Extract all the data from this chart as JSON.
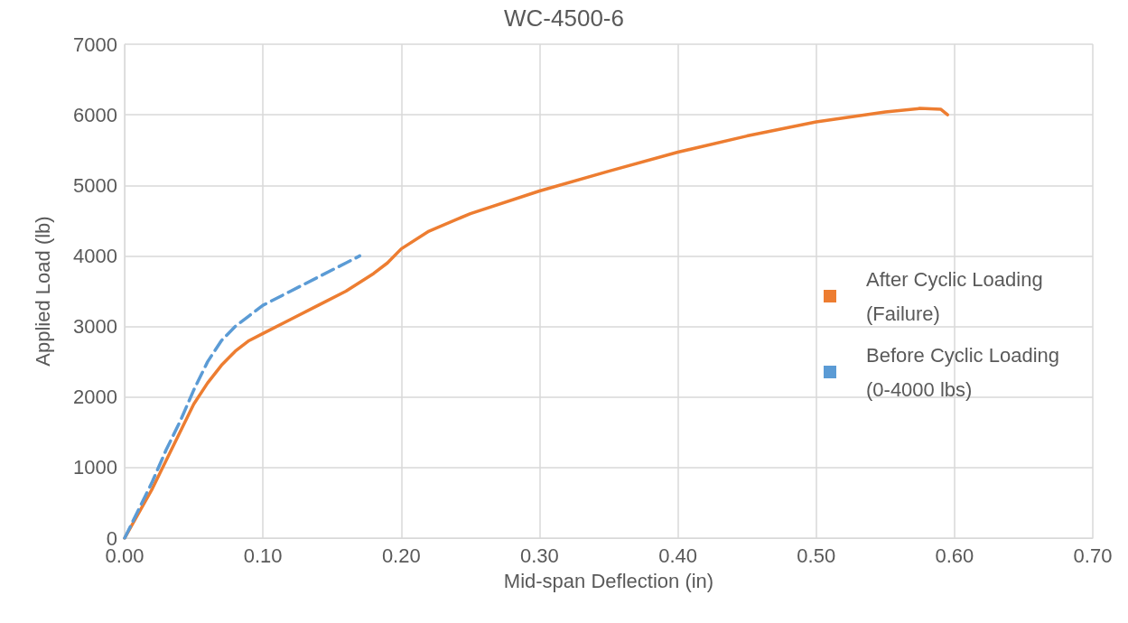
{
  "chart_data": {
    "type": "line",
    "title": "WC-4500-6",
    "xlabel": "Mid-span Deflection (in)",
    "ylabel": "Applied Load (lb)",
    "xlim": [
      0,
      0.7
    ],
    "xticks": [
      {
        "value": 0,
        "label": "0.00"
      },
      {
        "value": 0.1,
        "label": "0.10"
      },
      {
        "value": 0.2,
        "label": "0.20"
      },
      {
        "value": 0.3,
        "label": "0.30"
      },
      {
        "value": 0.4,
        "label": "0.40"
      },
      {
        "value": 0.5,
        "label": "0.50"
      },
      {
        "value": 0.6,
        "label": "0.60"
      },
      {
        "value": 0.7,
        "label": "0.70"
      }
    ],
    "ylim": [
      0,
      7000
    ],
    "yticks": [
      0,
      1000,
      2000,
      3000,
      4000,
      5000,
      6000,
      7000
    ],
    "grid": true,
    "legend": "right",
    "marker": "none",
    "series": [
      {
        "name": "After Cyclic Loading (Failure)",
        "color": "#ed7d31",
        "line_style": "solid",
        "x": [
          0,
          0.01,
          0.02,
          0.03,
          0.04,
          0.05,
          0.06,
          0.07,
          0.08,
          0.09,
          0.1,
          0.12,
          0.14,
          0.16,
          0.18,
          0.19,
          0.2,
          0.22,
          0.25,
          0.3,
          0.35,
          0.4,
          0.45,
          0.5,
          0.55,
          0.575,
          0.59,
          0.595
        ],
        "values": [
          0,
          350,
          700,
          1100,
          1500,
          1900,
          2200,
          2450,
          2650,
          2800,
          2900,
          3100,
          3300,
          3500,
          3750,
          3900,
          4100,
          4350,
          4600,
          4920,
          5200,
          5470,
          5700,
          5900,
          6040,
          6090,
          6080,
          6000
        ]
      },
      {
        "name": "Before Cyclic Loading (0-4000 lbs)",
        "color": "#5b9bd5",
        "line_style": "dashed",
        "x": [
          0,
          0.01,
          0.02,
          0.03,
          0.04,
          0.05,
          0.06,
          0.07,
          0.08,
          0.09,
          0.1,
          0.12,
          0.14,
          0.15,
          0.16,
          0.17
        ],
        "values": [
          0,
          400,
          800,
          1250,
          1650,
          2100,
          2500,
          2800,
          3000,
          3150,
          3300,
          3500,
          3700,
          3800,
          3900,
          4000
        ]
      }
    ]
  }
}
